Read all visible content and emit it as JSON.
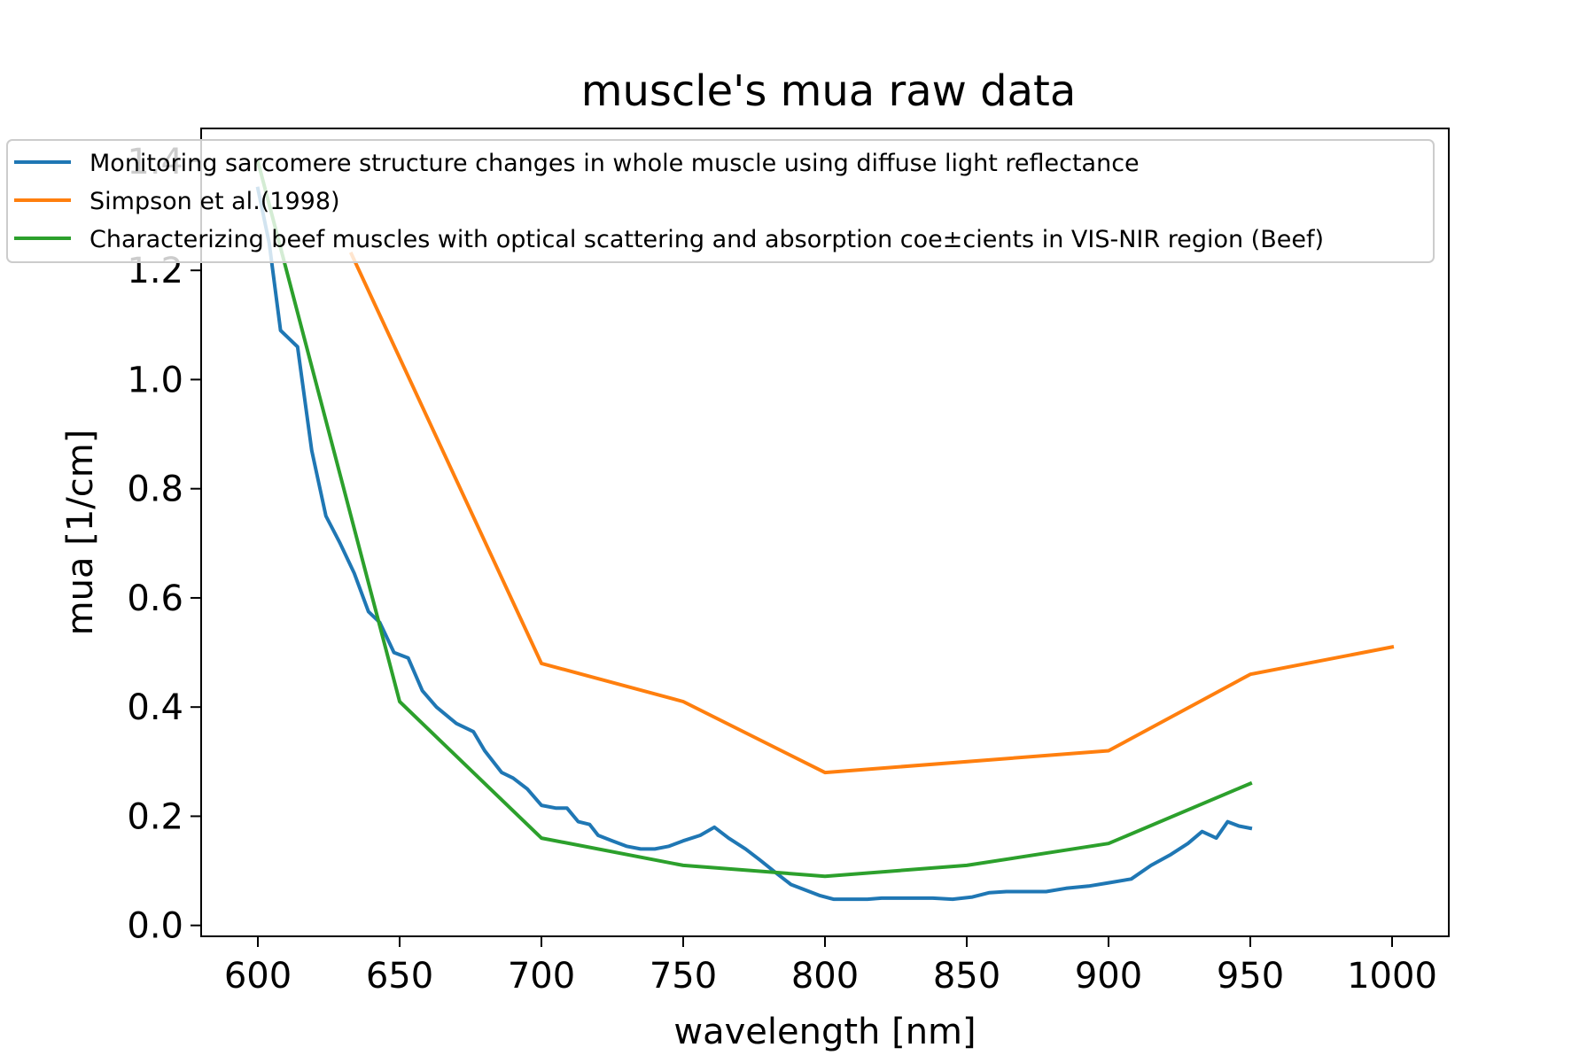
{
  "chart_data": {
    "type": "line",
    "title": "muscle's mua raw data",
    "xlabel": "wavelength [nm]",
    "ylabel": "mua [1/cm]",
    "xlim": [
      580,
      1020
    ],
    "ylim": [
      -0.02,
      1.46
    ],
    "xticks": [
      600,
      650,
      700,
      750,
      800,
      850,
      900,
      950,
      1000
    ],
    "xtick_labels": [
      "600",
      "650",
      "700",
      "750",
      "800",
      "850",
      "900",
      "950",
      "1000"
    ],
    "yticks": [
      0.0,
      0.2,
      0.4,
      0.6,
      0.8,
      1.0,
      1.2,
      1.4
    ],
    "ytick_labels": [
      "0.0",
      "0.2",
      "0.4",
      "0.6",
      "0.8",
      "1.0",
      "1.2",
      "1.4"
    ],
    "grid": false,
    "legend_position": "top",
    "series": [
      {
        "name": "Monitoring sarcomere structure changes in whole muscle using diffuse light reflectance",
        "color": "#1f77b4",
        "x": [
          600,
          604,
          608,
          614,
          619,
          624,
          629,
          634,
          639,
          643,
          648,
          653,
          658,
          663,
          670,
          676,
          680,
          686,
          690,
          695,
          700,
          705,
          709,
          713,
          717,
          720,
          725,
          730,
          735,
          740,
          745,
          750,
          756,
          761,
          766,
          772,
          777,
          783,
          788,
          793,
          798,
          803,
          808,
          815,
          820,
          825,
          832,
          838,
          845,
          852,
          858,
          864,
          872,
          878,
          885,
          893,
          900,
          908,
          915,
          922,
          928,
          933,
          938,
          942,
          946,
          950
        ],
        "y": [
          1.35,
          1.25,
          1.09,
          1.06,
          0.87,
          0.75,
          0.7,
          0.645,
          0.575,
          0.555,
          0.5,
          0.49,
          0.43,
          0.4,
          0.37,
          0.355,
          0.32,
          0.28,
          0.27,
          0.25,
          0.22,
          0.215,
          0.215,
          0.19,
          0.185,
          0.165,
          0.155,
          0.145,
          0.14,
          0.14,
          0.145,
          0.155,
          0.165,
          0.18,
          0.16,
          0.14,
          0.12,
          0.095,
          0.075,
          0.065,
          0.055,
          0.048,
          0.048,
          0.048,
          0.05,
          0.05,
          0.05,
          0.05,
          0.048,
          0.052,
          0.06,
          0.062,
          0.062,
          0.062,
          0.068,
          0.072,
          0.078,
          0.085,
          0.11,
          0.13,
          0.15,
          0.172,
          0.16,
          0.19,
          0.182,
          0.178
        ]
      },
      {
        "name": "Simpson et al.(1998)",
        "color": "#ff7f0e",
        "x": [
          633,
          700,
          750,
          800,
          900,
          950,
          1000
        ],
        "y": [
          1.23,
          0.48,
          0.41,
          0.28,
          0.32,
          0.46,
          0.51
        ]
      },
      {
        "name": "Characterizing beef muscles with optical scattering and absorption coe±cients in VIS-NIR region (Beef)",
        "color": "#2ca02c",
        "x": [
          600,
          650,
          700,
          750,
          800,
          850,
          900,
          950
        ],
        "y": [
          1.4,
          0.41,
          0.16,
          0.11,
          0.09,
          0.11,
          0.15,
          0.26
        ]
      }
    ]
  }
}
